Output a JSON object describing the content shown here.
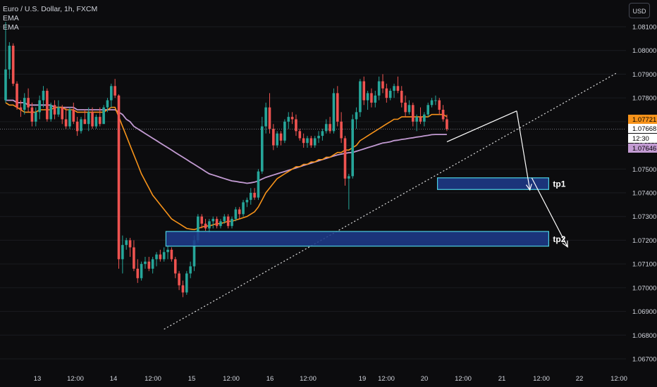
{
  "legend": {
    "symbol": "Euro / U.S. Dollar, 1h, FXCM",
    "indicators": [
      "EMA",
      "EMA"
    ]
  },
  "currency_button": "USD",
  "colors": {
    "background": "#0c0c0e",
    "candle_up": "#26a69a",
    "candle_down": "#ef5350",
    "ema_fast": "#f7931a",
    "ema_slow": "#c39bd3",
    "zone_fill": "#1e3a8a",
    "zone_border": "#4dd0e1",
    "trendline": "#e0e0e0",
    "arrow": "#ffffff"
  },
  "chart_data": {
    "type": "candlestick",
    "y_axis": {
      "range": [
        1.0665,
        1.0818
      ],
      "ticks": [
        "1.08100",
        "1.08000",
        "1.07900",
        "1.07800",
        "1.07700",
        "1.07600",
        "1.07500",
        "1.07400",
        "1.07300",
        "1.07200",
        "1.07100",
        "1.07000",
        "1.06900",
        "1.06800",
        "1.06700"
      ]
    },
    "x_axis": {
      "ticks": [
        "13",
        "12:00",
        "14",
        "12:00",
        "15",
        "12:00",
        "16",
        "12:00",
        "19",
        "12:00",
        "20",
        "12:00",
        "21",
        "12:00",
        "22",
        "12:00"
      ]
    },
    "price_labels": [
      {
        "text": "1.07721",
        "value": 1.07721,
        "style": "ema_fast"
      },
      {
        "text": "1.07668",
        "value": 1.07668,
        "style": "current"
      },
      {
        "text": "12:30",
        "value": 1.07652,
        "style": "countdown"
      },
      {
        "text": "1.07646",
        "value": 1.07646,
        "style": "ema_slow"
      }
    ],
    "current_price": 1.07668,
    "zones": [
      {
        "label": "tp1",
        "x0": 114.5,
        "x1": 144,
        "y0": 1.07414,
        "y1": 1.07463
      },
      {
        "label": "tp2",
        "x0": 42.5,
        "x1": 144,
        "y0": 1.07175,
        "y1": 1.07237
      }
    ],
    "trendline": {
      "p0": [
        42,
        1.06825
      ],
      "p1": [
        162,
        1.07905
      ]
    },
    "arrows": [
      {
        "from": [
          135.5,
          1.07745
        ],
        "to": [
          139,
          1.07412
        ]
      },
      {
        "from": [
          139.5,
          1.07463
        ],
        "to": [
          149,
          1.07172
        ]
      }
    ],
    "candles": [
      [
        1.0779,
        1.0812,
        1.0778,
        1.0792
      ],
      [
        1.0792,
        1.08035,
        1.0788,
        1.0802
      ],
      [
        1.0802,
        1.0803,
        1.0785,
        1.0786
      ],
      [
        1.0786,
        1.0787,
        1.0775,
        1.0776
      ],
      [
        1.0776,
        1.0779,
        1.0772,
        1.0775
      ],
      [
        1.0775,
        1.0782,
        1.0773,
        1.078
      ],
      [
        1.078,
        1.0784,
        1.0774,
        1.0776
      ],
      [
        1.0776,
        1.0778,
        1.0768,
        1.077
      ],
      [
        1.077,
        1.0776,
        1.0768,
        1.0774
      ],
      [
        1.0774,
        1.0781,
        1.0771,
        1.0779
      ],
      [
        1.0779,
        1.0785,
        1.0776,
        1.0783
      ],
      [
        1.0783,
        1.0784,
        1.077,
        1.0771
      ],
      [
        1.0771,
        1.0778,
        1.077,
        1.0777
      ],
      [
        1.0777,
        1.0779,
        1.0771,
        1.0773
      ],
      [
        1.0773,
        1.0779,
        1.0772,
        1.0776
      ],
      [
        1.0776,
        1.0777,
        1.0769,
        1.0771
      ],
      [
        1.0771,
        1.0776,
        1.0767,
        1.0768
      ],
      [
        1.0768,
        1.0776,
        1.0767,
        1.0775
      ],
      [
        1.0775,
        1.0778,
        1.0769,
        1.077
      ],
      [
        1.077,
        1.0772,
        1.0764,
        1.0766
      ],
      [
        1.0766,
        1.0772,
        1.0765,
        1.0771
      ],
      [
        1.0771,
        1.0775,
        1.0769,
        1.0769
      ],
      [
        1.0769,
        1.0776,
        1.0766,
        1.0774
      ],
      [
        1.0774,
        1.0776,
        1.0767,
        1.0768
      ],
      [
        1.0768,
        1.0773,
        1.0767,
        1.0772
      ],
      [
        1.0772,
        1.0776,
        1.0768,
        1.0769
      ],
      [
        1.0769,
        1.0777,
        1.0769,
        1.0776
      ],
      [
        1.0776,
        1.078,
        1.0774,
        1.0779
      ],
      [
        1.0779,
        1.0786,
        1.0776,
        1.0785
      ],
      [
        1.0785,
        1.0788,
        1.078,
        1.0781
      ],
      [
        1.0781,
        1.07815,
        1.0708,
        1.0712
      ],
      [
        1.0712,
        1.0722,
        1.0706,
        1.0718
      ],
      [
        1.0718,
        1.0721,
        1.0716,
        1.072
      ],
      [
        1.072,
        1.0721,
        1.0713,
        1.0717
      ],
      [
        1.0717,
        1.072,
        1.0707,
        1.0708
      ],
      [
        1.0708,
        1.0712,
        1.0702,
        1.0704
      ],
      [
        1.0704,
        1.0711,
        1.0703,
        1.071
      ],
      [
        1.071,
        1.0713,
        1.0708,
        1.0711
      ],
      [
        1.0711,
        1.0713,
        1.0707,
        1.0708
      ],
      [
        1.0708,
        1.0713,
        1.0706,
        1.0712
      ],
      [
        1.0712,
        1.0715,
        1.0709,
        1.0714
      ],
      [
        1.0714,
        1.0716,
        1.0711,
        1.0712
      ],
      [
        1.0712,
        1.0717,
        1.0711,
        1.0715
      ],
      [
        1.0715,
        1.0718,
        1.0712,
        1.0716
      ],
      [
        1.0716,
        1.0717,
        1.0711,
        1.0712
      ],
      [
        1.0712,
        1.0713,
        1.0704,
        1.0706
      ],
      [
        1.0706,
        1.0707,
        1.0699,
        1.0701
      ],
      [
        1.0701,
        1.0703,
        1.0696,
        1.0698
      ],
      [
        1.0698,
        1.0707,
        1.0697,
        1.0706
      ],
      [
        1.0706,
        1.0711,
        1.0704,
        1.0709
      ],
      [
        1.0709,
        1.0722,
        1.0707,
        1.072
      ],
      [
        1.072,
        1.0731,
        1.0719,
        1.073
      ],
      [
        1.073,
        1.0731,
        1.0725,
        1.0727
      ],
      [
        1.0727,
        1.0729,
        1.0724,
        1.0725
      ],
      [
        1.0725,
        1.0729,
        1.0723,
        1.0728
      ],
      [
        1.0728,
        1.073,
        1.0725,
        1.0729
      ],
      [
        1.0729,
        1.073,
        1.0725,
        1.0726
      ],
      [
        1.0726,
        1.0729,
        1.0725,
        1.0728
      ],
      [
        1.0728,
        1.0731,
        1.0727,
        1.073
      ],
      [
        1.073,
        1.0731,
        1.0725,
        1.0726
      ],
      [
        1.0726,
        1.073,
        1.0725,
        1.0729
      ],
      [
        1.0729,
        1.0734,
        1.0728,
        1.0733
      ],
      [
        1.0733,
        1.0734,
        1.0729,
        1.0731
      ],
      [
        1.0731,
        1.0737,
        1.073,
        1.0736
      ],
      [
        1.0736,
        1.0738,
        1.0734,
        1.0737
      ],
      [
        1.0737,
        1.0742,
        1.0735,
        1.074
      ],
      [
        1.074,
        1.0742,
        1.0737,
        1.0738
      ],
      [
        1.0738,
        1.075,
        1.0737,
        1.0749
      ],
      [
        1.0749,
        1.0772,
        1.0748,
        1.0768
      ],
      [
        1.0768,
        1.0778,
        1.0765,
        1.0776
      ],
      [
        1.0776,
        1.0782,
        1.0765,
        1.0767
      ],
      [
        1.0767,
        1.0769,
        1.0758,
        1.076
      ],
      [
        1.076,
        1.0766,
        1.0759,
        1.0765
      ],
      [
        1.0765,
        1.0766,
        1.076,
        1.0762
      ],
      [
        1.0762,
        1.0771,
        1.0761,
        1.077
      ],
      [
        1.077,
        1.0774,
        1.0767,
        1.0772
      ],
      [
        1.0772,
        1.0774,
        1.0769,
        1.0771
      ],
      [
        1.0771,
        1.0773,
        1.0764,
        1.0766
      ],
      [
        1.0766,
        1.0767,
        1.0762,
        1.0763
      ],
      [
        1.0763,
        1.0765,
        1.0759,
        1.0761
      ],
      [
        1.0761,
        1.0764,
        1.0759,
        1.0763
      ],
      [
        1.0763,
        1.0764,
        1.0759,
        1.076
      ],
      [
        1.076,
        1.0764,
        1.0759,
        1.0763
      ],
      [
        1.0763,
        1.0766,
        1.0761,
        1.0764
      ],
      [
        1.0764,
        1.0767,
        1.0762,
        1.0766
      ],
      [
        1.0766,
        1.0771,
        1.0765,
        1.0769
      ],
      [
        1.0769,
        1.0772,
        1.0765,
        1.0766
      ],
      [
        1.0766,
        1.0784,
        1.0765,
        1.0782
      ],
      [
        1.0782,
        1.0785,
        1.0768,
        1.077
      ],
      [
        1.077,
        1.0774,
        1.0761,
        1.0763
      ],
      [
        1.0763,
        1.0764,
        1.0743,
        1.0746
      ],
      [
        1.0746,
        1.0748,
        1.0733,
        1.0747
      ],
      [
        1.0747,
        1.0773,
        1.0746,
        1.0771
      ],
      [
        1.0771,
        1.0776,
        1.0767,
        1.0774
      ],
      [
        1.0774,
        1.0788,
        1.0772,
        1.0787
      ],
      [
        1.0787,
        1.0789,
        1.0777,
        1.0779
      ],
      [
        1.0779,
        1.0783,
        1.0775,
        1.0782
      ],
      [
        1.0782,
        1.0784,
        1.0776,
        1.0778
      ],
      [
        1.0778,
        1.0783,
        1.0776,
        1.0781
      ],
      [
        1.0781,
        1.0789,
        1.0779,
        1.0787
      ],
      [
        1.0787,
        1.079,
        1.0782,
        1.0784
      ],
      [
        1.0784,
        1.0786,
        1.0778,
        1.078
      ],
      [
        1.078,
        1.0784,
        1.0779,
        1.0783
      ],
      [
        1.0783,
        1.0786,
        1.078,
        1.0785
      ],
      [
        1.0785,
        1.0789,
        1.0782,
        1.0783
      ],
      [
        1.0783,
        1.0785,
        1.0776,
        1.0778
      ],
      [
        1.0778,
        1.0781,
        1.0772,
        1.0774
      ],
      [
        1.0774,
        1.0779,
        1.0773,
        1.0777
      ],
      [
        1.0777,
        1.0778,
        1.0768,
        1.077
      ],
      [
        1.077,
        1.0773,
        1.0766,
        1.0772
      ],
      [
        1.0772,
        1.0776,
        1.0769,
        1.077
      ],
      [
        1.077,
        1.0774,
        1.0768,
        1.0773
      ],
      [
        1.0773,
        1.0778,
        1.0772,
        1.0777
      ],
      [
        1.0777,
        1.078,
        1.0776,
        1.0779
      ],
      [
        1.0779,
        1.0781,
        1.0777,
        1.0779
      ],
      [
        1.0779,
        1.078,
        1.0773,
        1.0775
      ],
      [
        1.0775,
        1.0777,
        1.077,
        1.0771
      ],
      [
        1.0771,
        1.0773,
        1.0766,
        1.07668
      ]
    ],
    "ema_fast": [
      1.0778,
      1.0777,
      1.0777,
      1.0776,
      1.0775,
      1.0774,
      1.0774,
      1.0774,
      1.0774,
      1.0775,
      1.0775,
      1.0775,
      1.0775,
      1.0776,
      1.0776,
      1.0776,
      1.0775,
      1.0775,
      1.0775,
      1.0774,
      1.0774,
      1.0774,
      1.0774,
      1.0774,
      1.0774,
      1.0774,
      1.0774,
      1.0775,
      1.0776,
      1.0776,
      1.0772,
      1.0768,
      1.0764,
      1.076,
      1.0756,
      1.0752,
      1.0748,
      1.0745,
      1.0742,
      1.0739,
      1.0737,
      1.0735,
      1.0733,
      1.0731,
      1.0729,
      1.0728,
      1.0727,
      1.0726,
      1.0725,
      1.07247,
      1.07245,
      1.0725,
      1.07255,
      1.0726,
      1.0726,
      1.07265,
      1.0727,
      1.0727,
      1.07275,
      1.0728,
      1.0728,
      1.07285,
      1.0729,
      1.07295,
      1.073,
      1.0731,
      1.0732,
      1.0734,
      1.0737,
      1.074,
      1.0742,
      1.0744,
      1.0746,
      1.0747,
      1.0748,
      1.0749,
      1.075,
      1.0751,
      1.0751,
      1.0752,
      1.0752,
      1.0753,
      1.0753,
      1.0754,
      1.0754,
      1.0755,
      1.0755,
      1.0756,
      1.0757,
      1.0757,
      1.0758,
      1.0758,
      1.0759,
      1.076,
      1.0762,
      1.0763,
      1.0764,
      1.0765,
      1.0766,
      1.0767,
      1.0768,
      1.0769,
      1.077,
      1.0771,
      1.0771,
      1.0772,
      1.0772,
      1.0772,
      1.0772,
      1.0772,
      1.0772,
      1.0772,
      1.0772,
      1.0773,
      1.0773,
      1.0773,
      1.0773,
      1.07721
    ],
    "ema_slow": [
      1.0779,
      1.0779,
      1.0779,
      1.0778,
      1.0778,
      1.0778,
      1.0777,
      1.0777,
      1.0777,
      1.0777,
      1.0777,
      1.0777,
      1.0777,
      1.0776,
      1.0776,
      1.0776,
      1.0776,
      1.0776,
      1.0776,
      1.0775,
      1.0775,
      1.0775,
      1.0775,
      1.0775,
      1.0775,
      1.0775,
      1.0775,
      1.0775,
      1.0775,
      1.0775,
      1.0774,
      1.0773,
      1.0771,
      1.077,
      1.0768,
      1.0767,
      1.0766,
      1.0765,
      1.0764,
      1.0763,
      1.0762,
      1.0761,
      1.076,
      1.0759,
      1.0758,
      1.0757,
      1.0756,
      1.0755,
      1.0754,
      1.0753,
      1.0752,
      1.0751,
      1.075,
      1.0749,
      1.0748,
      1.07475,
      1.0747,
      1.07465,
      1.0746,
      1.07455,
      1.0745,
      1.07448,
      1.07445,
      1.07443,
      1.0744,
      1.07442,
      1.07445,
      1.0745,
      1.07458,
      1.07465,
      1.0747,
      1.07475,
      1.0748,
      1.07485,
      1.0749,
      1.07495,
      1.075,
      1.07505,
      1.0751,
      1.07515,
      1.0752,
      1.07525,
      1.0753,
      1.07535,
      1.0754,
      1.07545,
      1.0755,
      1.07555,
      1.0756,
      1.07563,
      1.07566,
      1.07569,
      1.0757,
      1.07575,
      1.0758,
      1.07585,
      1.0759,
      1.07595,
      1.076,
      1.07605,
      1.0761,
      1.07612,
      1.07615,
      1.0762,
      1.07622,
      1.07625,
      1.07627,
      1.0763,
      1.07632,
      1.07635,
      1.07637,
      1.0764,
      1.07642,
      1.07645,
      1.07646,
      1.07646,
      1.07646,
      1.07646
    ]
  }
}
